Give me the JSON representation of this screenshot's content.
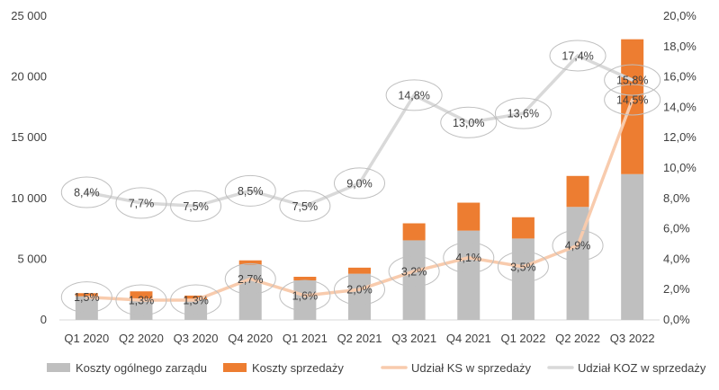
{
  "chart_data": {
    "type": "bar",
    "categories": [
      "Q1 2020",
      "Q2 2020",
      "Q3 2020",
      "Q4 2020",
      "Q1 2021",
      "Q2 2021",
      "Q3 2021",
      "Q4 2021",
      "Q1 2022",
      "Q2 2022",
      "Q3 2022"
    ],
    "series": [
      {
        "name": "Koszty ogólnego zarządu",
        "kind": "stacked-bar",
        "axis": "left",
        "color": "#bfbfbf",
        "values": [
          1950,
          1750,
          1700,
          4550,
          3250,
          3800,
          6550,
          7350,
          6700,
          9300,
          12000
        ]
      },
      {
        "name": "Koszty sprzedaży",
        "kind": "stacked-bar",
        "axis": "left",
        "color": "#ed7d31",
        "values": [
          250,
          600,
          300,
          350,
          300,
          500,
          1400,
          2300,
          1750,
          2550,
          11100
        ]
      },
      {
        "name": "Udział KS w sprzedaży",
        "kind": "line",
        "axis": "right",
        "color": "#f8cbad",
        "values": [
          1.5,
          1.3,
          1.3,
          2.7,
          1.6,
          2.0,
          3.2,
          4.1,
          3.5,
          4.9,
          14.5
        ],
        "labels": [
          "1,5%",
          "1,3%",
          "1,3%",
          "2,7%",
          "1,6%",
          "2,0%",
          "3,2%",
          "4,1%",
          "3,5%",
          "4,9%",
          "14,5%"
        ]
      },
      {
        "name": "Udział KOZ w sprzedaży",
        "kind": "line",
        "axis": "right",
        "color": "#d9d9d9",
        "values": [
          8.4,
          7.7,
          7.5,
          8.5,
          7.5,
          9.0,
          14.8,
          13.0,
          13.6,
          17.4,
          15.8
        ],
        "labels": [
          "8,4%",
          "7,7%",
          "7,5%",
          "8,5%",
          "7,5%",
          "9,0%",
          "14,8%",
          "13,0%",
          "13,6%",
          "17,4%",
          "15,8%"
        ]
      }
    ],
    "ylim": [
      0,
      25000
    ],
    "y2lim": [
      0,
      20
    ],
    "y_ticks": [
      "0",
      "5 000",
      "10 000",
      "15 000",
      "20 000",
      "25 000"
    ],
    "y2_ticks": [
      "0,0%",
      "2,0%",
      "4,0%",
      "6,0%",
      "8,0%",
      "10,0%",
      "12,0%",
      "14,0%",
      "16,0%",
      "18,0%",
      "20,0%"
    ],
    "grid": false,
    "legend_position": "bottom"
  }
}
